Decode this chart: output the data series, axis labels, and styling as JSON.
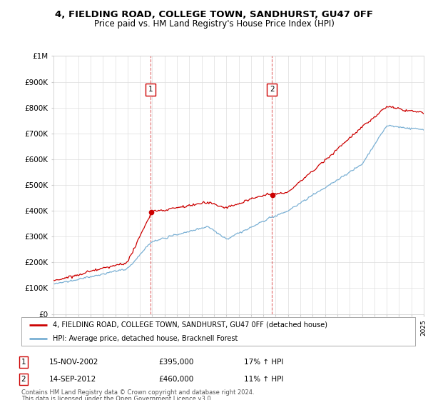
{
  "title": "4, FIELDING ROAD, COLLEGE TOWN, SANDHURST, GU47 0FF",
  "subtitle": "Price paid vs. HM Land Registry's House Price Index (HPI)",
  "ylim": [
    0,
    1000000
  ],
  "yticks": [
    0,
    100000,
    200000,
    300000,
    400000,
    500000,
    600000,
    700000,
    800000,
    900000,
    1000000
  ],
  "ytick_labels": [
    "£0",
    "£100K",
    "£200K",
    "£300K",
    "£400K",
    "£500K",
    "£600K",
    "£700K",
    "£800K",
    "£900K",
    "£1M"
  ],
  "x_start_year": 1995,
  "x_end_year": 2025,
  "sale1_year": 2002.88,
  "sale1_price": 395000,
  "sale2_year": 2012.71,
  "sale2_price": 460000,
  "line1_color": "#cc0000",
  "line2_color": "#7ab0d4",
  "legend1_label": "4, FIELDING ROAD, COLLEGE TOWN, SANDHURST, GU47 0FF (detached house)",
  "legend2_label": "HPI: Average price, detached house, Bracknell Forest",
  "footer1": "Contains HM Land Registry data © Crown copyright and database right 2024.",
  "footer2": "This data is licensed under the Open Government Licence v3.0.",
  "table_row1": [
    "1",
    "15-NOV-2002",
    "£395,000",
    "17% ↑ HPI"
  ],
  "table_row2": [
    "2",
    "14-SEP-2012",
    "£460,000",
    "11% ↑ HPI"
  ],
  "bg_color": "#ffffff",
  "grid_color": "#dddddd",
  "vline_color": "#cc0000",
  "box_color": "#cc0000",
  "title_fontsize": 9.5,
  "subtitle_fontsize": 8.5
}
